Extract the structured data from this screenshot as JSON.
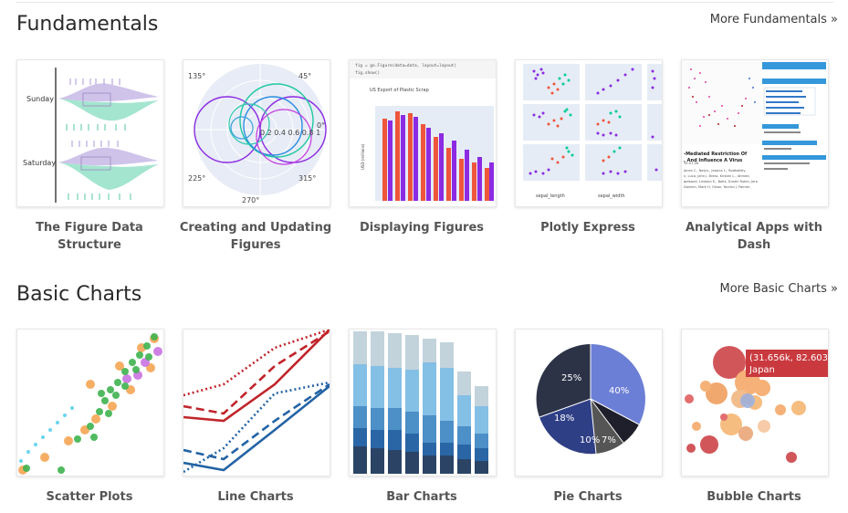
{
  "sections": [
    {
      "title": "Fundamentals",
      "more": "More Fundamentals »",
      "cards": [
        {
          "label": "The Figure Data Structure"
        },
        {
          "label": "Creating and Updating Figures"
        },
        {
          "label": "Displaying Figures"
        },
        {
          "label": "Plotly Express"
        },
        {
          "label": "Analytical Apps with Dash"
        }
      ]
    },
    {
      "title": "Basic Charts",
      "more": "More Basic Charts »",
      "cards": [
        {
          "label": "Scatter Plots"
        },
        {
          "label": "Line Charts"
        },
        {
          "label": "Bar Charts"
        },
        {
          "label": "Pie Charts"
        },
        {
          "label": "Bubble Charts"
        }
      ]
    }
  ],
  "thumbs": {
    "violin": {
      "day1": "Sunday",
      "day2": "Saturday"
    },
    "polar": {
      "a135": "135°",
      "a45": "45°",
      "a0": "0°",
      "a225": "225°",
      "a315": "315°",
      "a270": "270°",
      "radial": "0.2 0.4 0.6 0.8 1"
    },
    "display": {
      "code1": "fig = go.Figure(data=data, layout=layout)",
      "code2": "fig.show()",
      "title": "US Export of Plastic Scrap",
      "ylabel": "USD (millions)"
    },
    "px": {
      "xlab1": "sepal_length",
      "xlab2": "sepal_width"
    },
    "dash": {
      "heading": "-Mediated Restriction Of",
      "heading2": ", And Influence A Virus",
      "authors1": "Jones C., Naiyn., Jessica L., Rodkotttiy,",
      "authors2": "n, Luca, Jahn J. Bress, Kirsten L., Ahmed,",
      "authors3": "gelband, Lindsen E., Balts, Dustin Rubin, Jera",
      "authors4": "Doinlen, Mark H, Olson, Yavrtoi J. Painter,",
      "date": "15-07-06"
    },
    "pie": {
      "p25": "25%",
      "p40": "40%",
      "p18": "18%",
      "p10": "10%",
      "p7": "7%"
    },
    "bubble": {
      "tip1": "(31.656k, 82.603)",
      "tip2": "Japan"
    }
  }
}
